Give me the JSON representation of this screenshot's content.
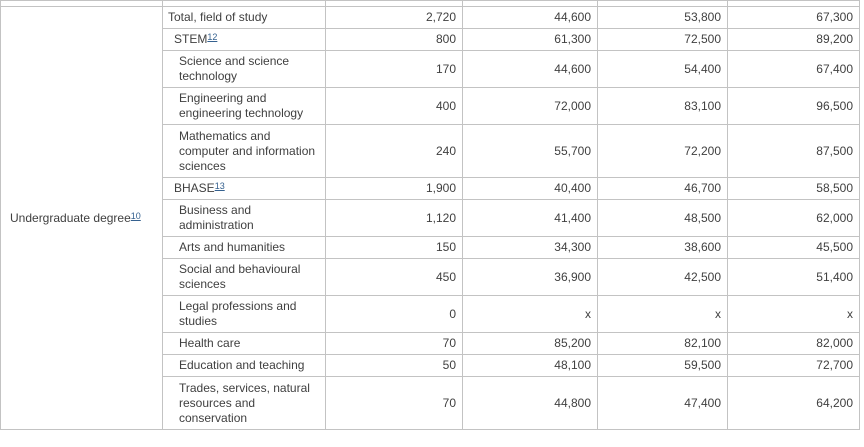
{
  "colors": {
    "text": "#404040",
    "border": "#c3c3c3",
    "footnote_link": "#35618f",
    "background": "#ffffff"
  },
  "row_group": {
    "label": "Undergraduate degree",
    "footnote": "10"
  },
  "suppressed_marker": "x",
  "rows": [
    {
      "label": "Total, field of study",
      "footnote": "",
      "indent": 0,
      "lines": 1,
      "values": [
        "2,720",
        "44,600",
        "53,800",
        "67,300"
      ]
    },
    {
      "label": "STEM",
      "footnote": "12",
      "indent": 1,
      "lines": 1,
      "values": [
        "800",
        "61,300",
        "72,500",
        "89,200"
      ]
    },
    {
      "label": "Science and science technology",
      "footnote": "",
      "indent": 2,
      "lines": 2,
      "values": [
        "170",
        "44,600",
        "54,400",
        "67,400"
      ]
    },
    {
      "label": "Engineering and engineering technology",
      "footnote": "",
      "indent": 2,
      "lines": 2,
      "values": [
        "400",
        "72,000",
        "83,100",
        "96,500"
      ]
    },
    {
      "label": "Mathematics and computer and information sciences",
      "footnote": "",
      "indent": 2,
      "lines": 3,
      "values": [
        "240",
        "55,700",
        "72,200",
        "87,500"
      ]
    },
    {
      "label": "BHASE",
      "footnote": "13",
      "indent": 1,
      "lines": 1,
      "values": [
        "1,900",
        "40,400",
        "46,700",
        "58,500"
      ]
    },
    {
      "label": "Business and administration",
      "footnote": "",
      "indent": 2,
      "lines": 2,
      "values": [
        "1,120",
        "41,400",
        "48,500",
        "62,000"
      ]
    },
    {
      "label": "Arts and humanities",
      "footnote": "",
      "indent": 2,
      "lines": 1,
      "values": [
        "150",
        "34,300",
        "38,600",
        "45,500"
      ]
    },
    {
      "label": "Social and behavioural sciences",
      "footnote": "",
      "indent": 2,
      "lines": 2,
      "values": [
        "450",
        "36,900",
        "42,500",
        "51,400"
      ]
    },
    {
      "label": "Legal professions and studies",
      "footnote": "",
      "indent": 2,
      "lines": 2,
      "values": [
        "0",
        "x",
        "x",
        "x"
      ]
    },
    {
      "label": "Health care",
      "footnote": "",
      "indent": 2,
      "lines": 1,
      "values": [
        "70",
        "85,200",
        "82,100",
        "82,000"
      ]
    },
    {
      "label": "Education and teaching",
      "footnote": "",
      "indent": 2,
      "lines": 1,
      "values": [
        "50",
        "48,100",
        "59,500",
        "72,700"
      ]
    },
    {
      "label": "Trades, services, natural resources and conservation",
      "footnote": "",
      "indent": 2,
      "lines": 3,
      "values": [
        "70",
        "44,800",
        "47,400",
        "64,200"
      ]
    }
  ]
}
